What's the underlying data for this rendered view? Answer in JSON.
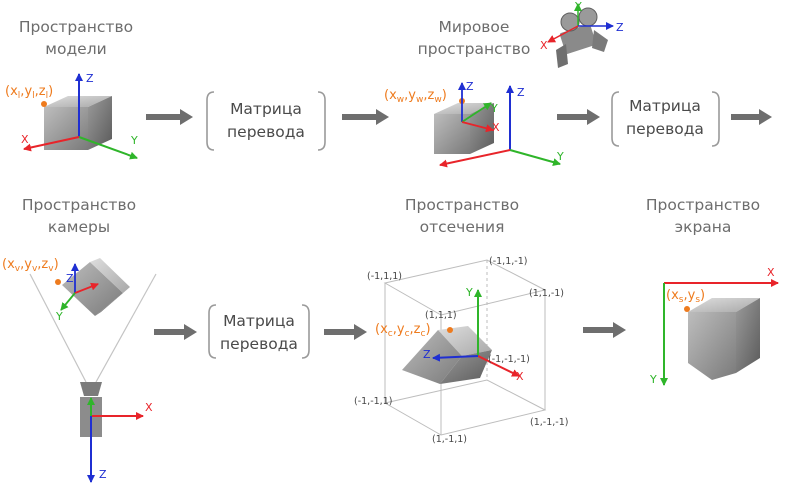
{
  "titles": {
    "model_line1": "Пространство",
    "model_line2": "модели",
    "world_line1": "Мировое",
    "world_line2": "пространство",
    "camera_line1": "Пространство",
    "camera_line2": "камеры",
    "clip_line1": "Пространство",
    "clip_line2": "отсечения",
    "screen_line1": "Пространство",
    "screen_line2": "экрана"
  },
  "matrix": {
    "line1": "Матрица",
    "line2": "перевода"
  },
  "coords": {
    "model": {
      "x": "x",
      "x_sub": "l",
      "y": "y",
      "y_sub": "l",
      "z": "z",
      "z_sub": "l"
    },
    "world": {
      "x": "x",
      "x_sub": "w",
      "y": "y",
      "y_sub": "w",
      "z": "z",
      "z_sub": "w"
    },
    "camera": {
      "x": "x",
      "x_sub": "v",
      "y": "y",
      "y_sub": "v",
      "z": "z",
      "z_sub": "v"
    },
    "clip": {
      "x": "x",
      "x_sub": "c",
      "y": "y",
      "y_sub": "c",
      "z": "z",
      "z_sub": "c"
    },
    "screen": {
      "x": "x",
      "x_sub": "s",
      "y": "y",
      "y_sub": "s"
    }
  },
  "axes": {
    "x": "X",
    "y": "Y",
    "z": "Z"
  },
  "clip_corners": {
    "top_left_back": "(-1,1,1)",
    "top_right_back": "(-1,1,-1)",
    "top_left_front": "(1,1,1)",
    "top_right_front": "(1,1,-1)",
    "bottom_right_back": "(-1,-1,-1)",
    "bottom_left_back": "(-1,-1,1)",
    "bottom_left_front": "(1,-1,1)",
    "bottom_right_front": "(1,-1,-1)"
  },
  "colors": {
    "x_axis": "#e8242a",
    "y_axis": "#2fb52a",
    "z_axis": "#1f2fd2",
    "coord_text": "#ee7b1e",
    "title_text": "#6d6d6d",
    "arrow": "#6e6e6e"
  }
}
